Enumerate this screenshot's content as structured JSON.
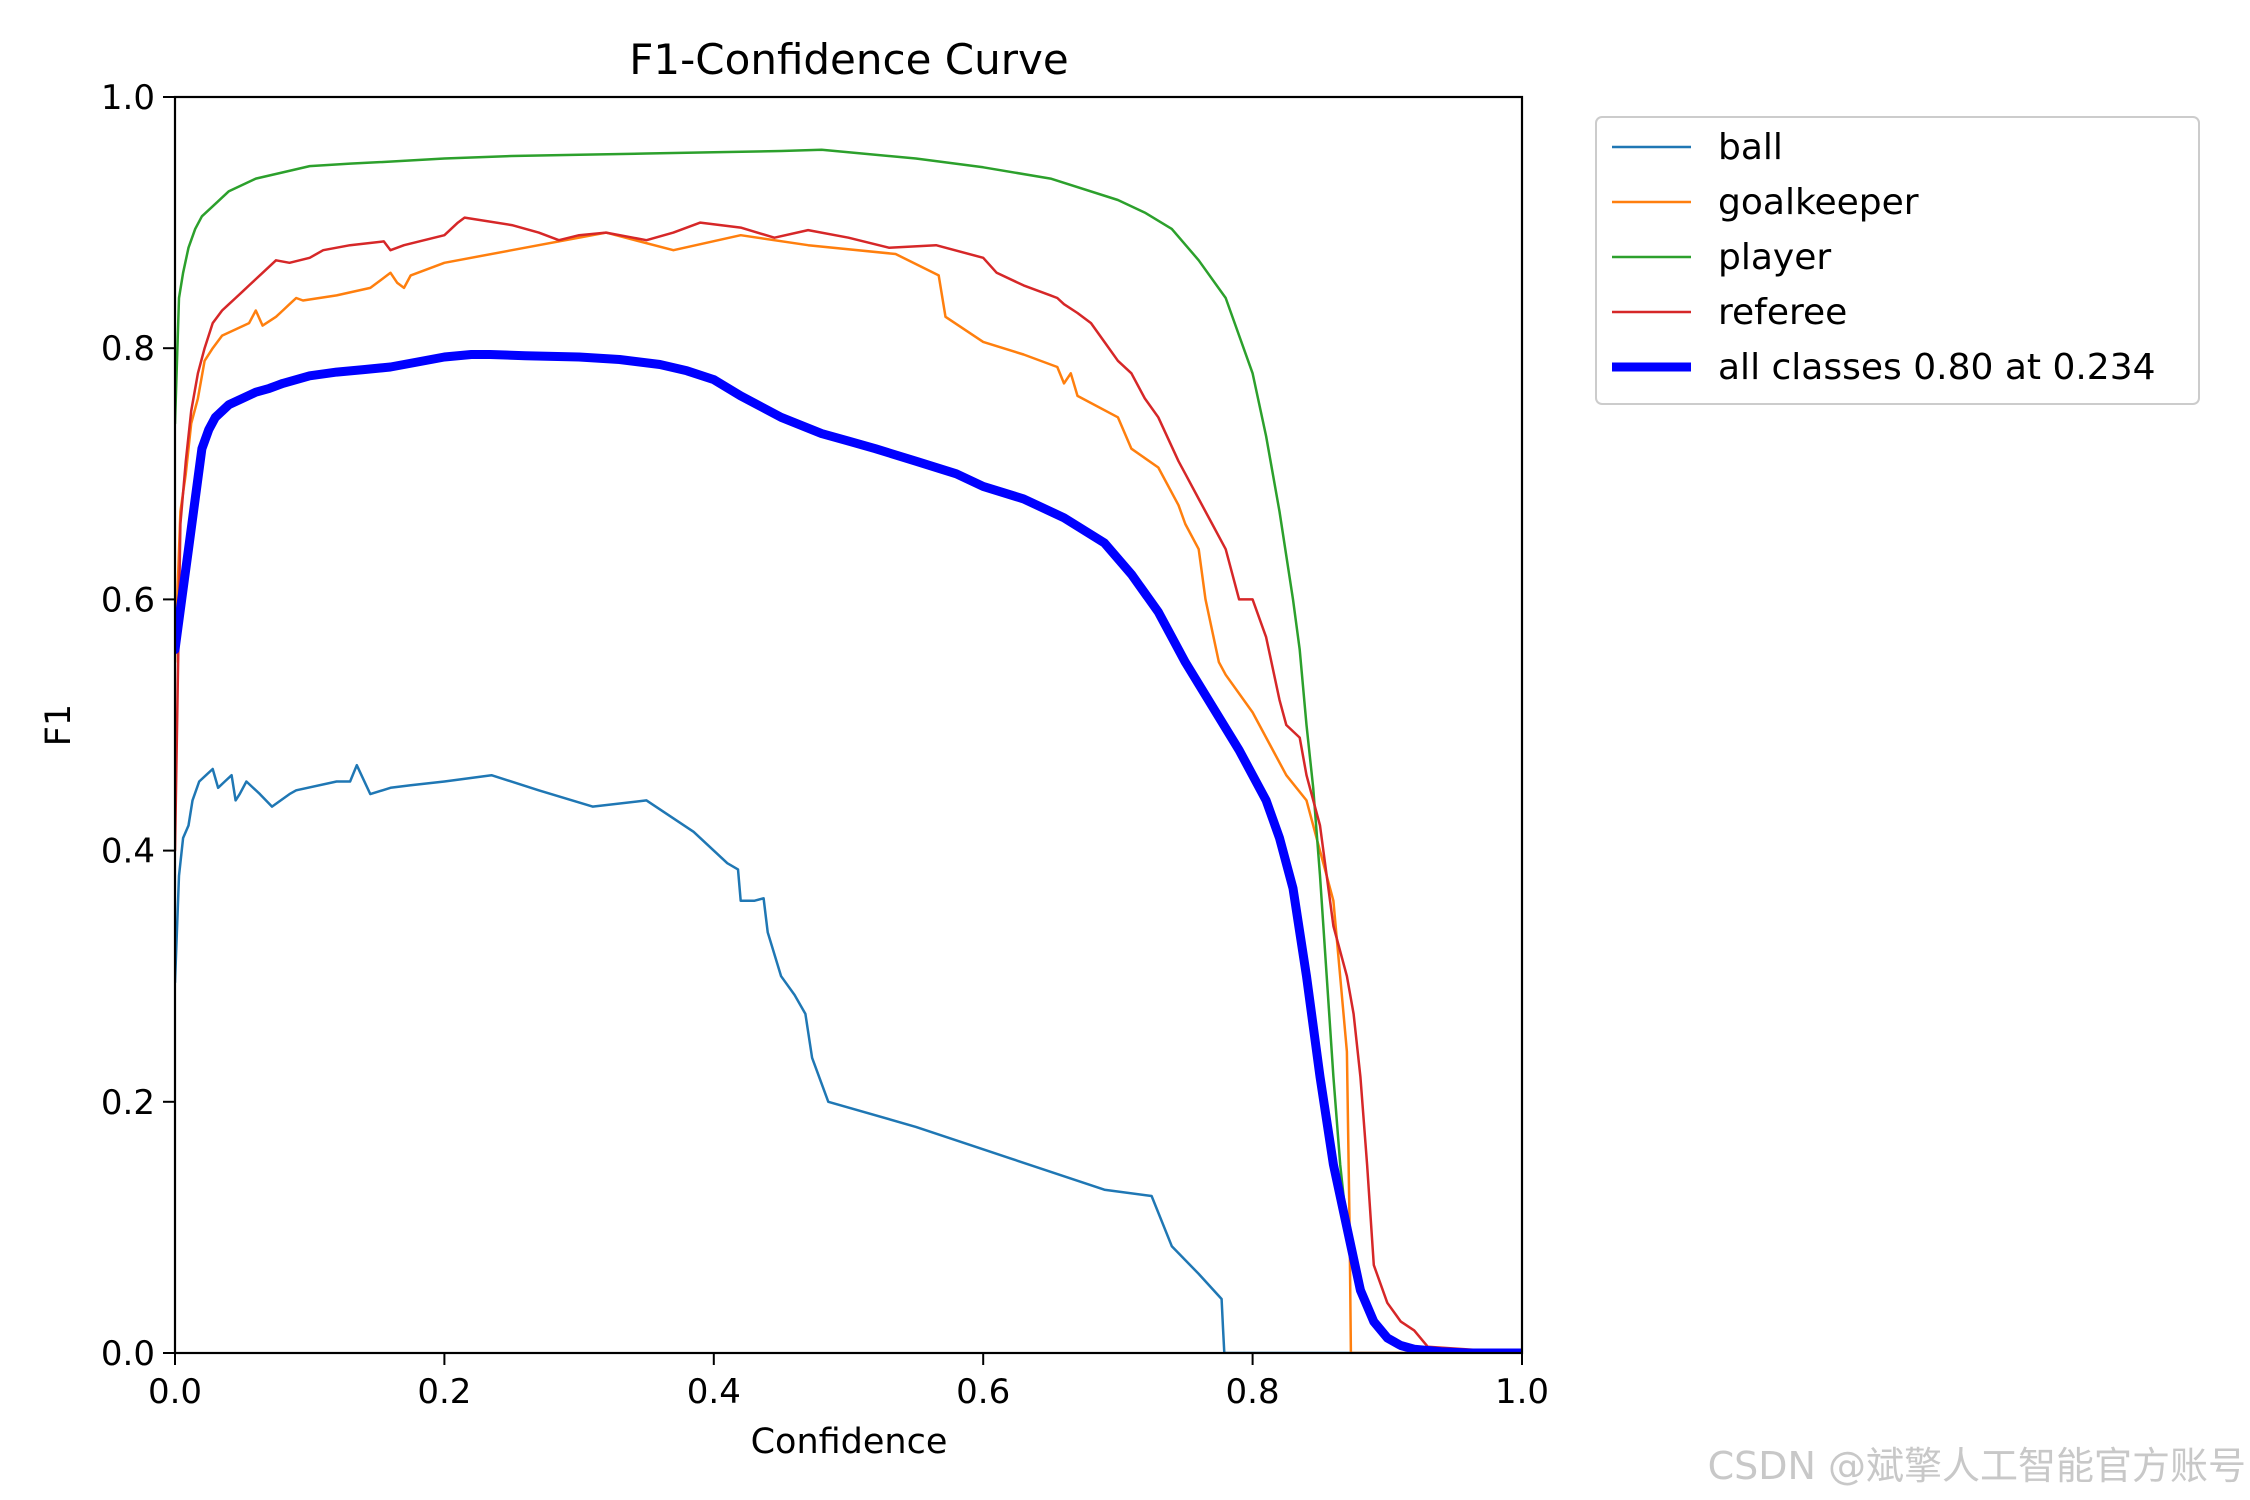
{
  "watermark": "CSDN @斌擎人工智能官方账号",
  "chart_data": {
    "type": "line",
    "title": "F1-Confidence Curve",
    "xlabel": "Confidence",
    "ylabel": "F1",
    "xlim": [
      0,
      1
    ],
    "ylim": [
      0,
      1
    ],
    "xticks": [
      "0.0",
      "0.2",
      "0.4",
      "0.6",
      "0.8",
      "1.0"
    ],
    "yticks": [
      "0.0",
      "0.2",
      "0.4",
      "0.6",
      "0.8",
      "1.0"
    ],
    "legend_position": "outside-top-right",
    "series": [
      {
        "name": "ball",
        "color": "#1f77b4",
        "width": 2.5,
        "x": [
          0,
          0.003,
          0.006,
          0.01,
          0.013,
          0.018,
          0.023,
          0.028,
          0.032,
          0.037,
          0.042,
          0.045,
          0.048,
          0.053,
          0.063,
          0.072,
          0.085,
          0.09,
          0.12,
          0.13,
          0.135,
          0.145,
          0.16,
          0.175,
          0.2,
          0.235,
          0.27,
          0.31,
          0.35,
          0.385,
          0.41,
          0.418,
          0.42,
          0.43,
          0.437,
          0.44,
          0.45,
          0.46,
          0.468,
          0.473,
          0.485,
          0.55,
          0.62,
          0.69,
          0.725,
          0.74,
          0.76,
          0.777,
          0.778,
          0.779,
          1.0
        ],
        "y": [
          0.295,
          0.38,
          0.41,
          0.42,
          0.44,
          0.455,
          0.46,
          0.465,
          0.45,
          0.455,
          0.46,
          0.44,
          0.445,
          0.455,
          0.445,
          0.435,
          0.445,
          0.448,
          0.455,
          0.455,
          0.468,
          0.445,
          0.45,
          0.452,
          0.455,
          0.46,
          0.448,
          0.435,
          0.44,
          0.415,
          0.39,
          0.385,
          0.36,
          0.36,
          0.362,
          0.335,
          0.3,
          0.285,
          0.27,
          0.235,
          0.2,
          0.18,
          0.155,
          0.13,
          0.125,
          0.085,
          0.063,
          0.043,
          0.02,
          0.0,
          0.0
        ]
      },
      {
        "name": "goalkeeper",
        "color": "#ff7f0e",
        "width": 2.5,
        "x": [
          0,
          0.004,
          0.008,
          0.012,
          0.017,
          0.022,
          0.028,
          0.035,
          0.045,
          0.055,
          0.06,
          0.065,
          0.075,
          0.08,
          0.085,
          0.09,
          0.095,
          0.12,
          0.145,
          0.16,
          0.165,
          0.17,
          0.175,
          0.2,
          0.25,
          0.32,
          0.37,
          0.42,
          0.47,
          0.535,
          0.567,
          0.572,
          0.6,
          0.63,
          0.655,
          0.66,
          0.665,
          0.67,
          0.7,
          0.71,
          0.73,
          0.745,
          0.75,
          0.76,
          0.765,
          0.775,
          0.78,
          0.8,
          0.825,
          0.84,
          0.86,
          0.87,
          0.872,
          0.873,
          1.0
        ],
        "y": [
          0.55,
          0.67,
          0.7,
          0.74,
          0.76,
          0.79,
          0.8,
          0.81,
          0.815,
          0.82,
          0.83,
          0.818,
          0.825,
          0.83,
          0.835,
          0.84,
          0.838,
          0.842,
          0.848,
          0.86,
          0.852,
          0.848,
          0.858,
          0.868,
          0.878,
          0.892,
          0.878,
          0.89,
          0.882,
          0.875,
          0.858,
          0.825,
          0.805,
          0.795,
          0.785,
          0.772,
          0.78,
          0.762,
          0.745,
          0.72,
          0.705,
          0.675,
          0.66,
          0.64,
          0.6,
          0.55,
          0.54,
          0.51,
          0.46,
          0.44,
          0.36,
          0.24,
          0.1,
          0.0,
          0.0
        ]
      },
      {
        "name": "player",
        "color": "#2ca02c",
        "width": 2.5,
        "x": [
          0,
          0.003,
          0.006,
          0.01,
          0.015,
          0.02,
          0.03,
          0.04,
          0.06,
          0.08,
          0.1,
          0.13,
          0.15,
          0.2,
          0.25,
          0.3,
          0.35,
          0.4,
          0.45,
          0.48,
          0.5,
          0.55,
          0.6,
          0.65,
          0.7,
          0.72,
          0.74,
          0.76,
          0.78,
          0.8,
          0.81,
          0.82,
          0.83,
          0.835,
          0.84,
          0.845,
          0.85,
          0.855,
          0.86,
          0.865,
          0.87,
          0.875,
          0.88,
          0.885,
          0.89,
          0.9,
          0.92,
          0.94,
          1.0
        ],
        "y": [
          0.74,
          0.84,
          0.86,
          0.88,
          0.895,
          0.905,
          0.915,
          0.925,
          0.935,
          0.94,
          0.945,
          0.947,
          0.948,
          0.951,
          0.953,
          0.954,
          0.955,
          0.956,
          0.957,
          0.958,
          0.956,
          0.951,
          0.944,
          0.935,
          0.918,
          0.908,
          0.895,
          0.87,
          0.84,
          0.78,
          0.73,
          0.67,
          0.6,
          0.56,
          0.5,
          0.45,
          0.38,
          0.3,
          0.22,
          0.15,
          0.1,
          0.08,
          0.06,
          0.04,
          0.025,
          0.012,
          0.003,
          0.001,
          0.0
        ]
      },
      {
        "name": "referee",
        "color": "#d62728",
        "width": 2.5,
        "x": [
          0,
          0.004,
          0.008,
          0.012,
          0.017,
          0.022,
          0.028,
          0.035,
          0.04,
          0.045,
          0.05,
          0.055,
          0.06,
          0.065,
          0.07,
          0.075,
          0.085,
          0.1,
          0.11,
          0.13,
          0.155,
          0.16,
          0.17,
          0.2,
          0.21,
          0.215,
          0.25,
          0.27,
          0.285,
          0.3,
          0.32,
          0.35,
          0.37,
          0.39,
          0.42,
          0.445,
          0.47,
          0.5,
          0.53,
          0.565,
          0.6,
          0.61,
          0.63,
          0.65,
          0.655,
          0.66,
          0.67,
          0.68,
          0.69,
          0.7,
          0.71,
          0.72,
          0.73,
          0.745,
          0.75,
          0.76,
          0.77,
          0.78,
          0.79,
          0.8,
          0.81,
          0.82,
          0.825,
          0.835,
          0.84,
          0.85,
          0.86,
          0.87,
          0.875,
          0.88,
          0.885,
          0.89,
          0.9,
          0.91,
          0.92,
          0.93,
          1.0
        ],
        "y": [
          0.4,
          0.66,
          0.71,
          0.75,
          0.78,
          0.8,
          0.82,
          0.83,
          0.835,
          0.84,
          0.845,
          0.85,
          0.855,
          0.86,
          0.865,
          0.87,
          0.868,
          0.872,
          0.878,
          0.882,
          0.885,
          0.878,
          0.882,
          0.89,
          0.9,
          0.904,
          0.898,
          0.892,
          0.886,
          0.89,
          0.892,
          0.886,
          0.892,
          0.9,
          0.896,
          0.888,
          0.894,
          0.888,
          0.88,
          0.882,
          0.872,
          0.86,
          0.85,
          0.842,
          0.84,
          0.835,
          0.828,
          0.82,
          0.805,
          0.79,
          0.78,
          0.76,
          0.745,
          0.71,
          0.7,
          0.68,
          0.66,
          0.64,
          0.6,
          0.6,
          0.57,
          0.52,
          0.5,
          0.49,
          0.46,
          0.42,
          0.34,
          0.3,
          0.27,
          0.22,
          0.15,
          0.07,
          0.04,
          0.025,
          0.018,
          0.005,
          0.0
        ]
      },
      {
        "name": "all classes 0.80 at 0.234",
        "color": "#0000ff",
        "width": 9,
        "x": [
          0,
          0.005,
          0.01,
          0.015,
          0.02,
          0.025,
          0.03,
          0.04,
          0.05,
          0.06,
          0.07,
          0.08,
          0.1,
          0.12,
          0.14,
          0.16,
          0.18,
          0.2,
          0.22,
          0.234,
          0.26,
          0.3,
          0.33,
          0.36,
          0.38,
          0.4,
          0.42,
          0.45,
          0.48,
          0.5,
          0.52,
          0.55,
          0.58,
          0.6,
          0.63,
          0.66,
          0.69,
          0.71,
          0.73,
          0.75,
          0.77,
          0.79,
          0.8,
          0.81,
          0.82,
          0.83,
          0.84,
          0.85,
          0.86,
          0.87,
          0.88,
          0.89,
          0.9,
          0.91,
          0.92,
          0.93,
          0.94,
          0.96,
          1.0
        ],
        "y": [
          0.56,
          0.6,
          0.64,
          0.68,
          0.72,
          0.735,
          0.745,
          0.755,
          0.76,
          0.765,
          0.768,
          0.772,
          0.778,
          0.781,
          0.783,
          0.785,
          0.789,
          0.793,
          0.795,
          0.795,
          0.794,
          0.793,
          0.791,
          0.787,
          0.782,
          0.775,
          0.762,
          0.745,
          0.732,
          0.726,
          0.72,
          0.71,
          0.7,
          0.69,
          0.68,
          0.665,
          0.645,
          0.62,
          0.59,
          0.55,
          0.515,
          0.48,
          0.46,
          0.44,
          0.41,
          0.37,
          0.3,
          0.22,
          0.15,
          0.1,
          0.05,
          0.025,
          0.012,
          0.006,
          0.003,
          0.002,
          0.001,
          0.0,
          0.0
        ]
      }
    ]
  }
}
